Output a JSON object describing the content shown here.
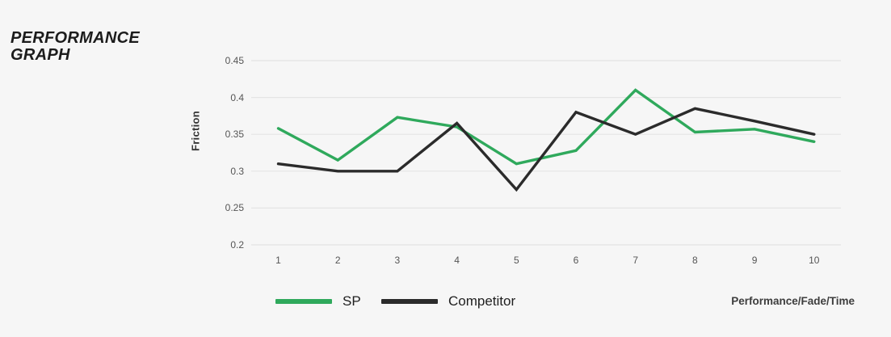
{
  "header": {
    "title": "PERFORMANCE GRAPH"
  },
  "axes": {
    "y_label": "Friction",
    "x_label": "Performance/Fade/Time"
  },
  "legend": {
    "items": [
      {
        "label": "SP",
        "color": "#2fa95c"
      },
      {
        "label": "Competitor",
        "color": "#2b2b2b"
      }
    ]
  },
  "chart_data": {
    "type": "line",
    "title": "PERFORMANCE GRAPH",
    "x": [
      1,
      2,
      3,
      4,
      5,
      6,
      7,
      8,
      9,
      10
    ],
    "series": [
      {
        "name": "SP",
        "color": "#2fa95c",
        "values": [
          0.358,
          0.315,
          0.373,
          0.36,
          0.31,
          0.328,
          0.41,
          0.353,
          0.357,
          0.34
        ]
      },
      {
        "name": "Competitor",
        "color": "#2b2b2b",
        "values": [
          0.31,
          0.3,
          0.3,
          0.365,
          0.275,
          0.38,
          0.35,
          0.385,
          0.368,
          0.35
        ]
      }
    ],
    "xlabel": "Performance/Fade/Time",
    "ylabel": "Friction",
    "ylim": [
      0.2,
      0.45
    ],
    "yticks": [
      0.45,
      0.4,
      0.35,
      0.3,
      0.25,
      0.2
    ],
    "ytick_labels": [
      "0.45",
      "0.4",
      "0.35",
      "0.3",
      "0.25",
      "0.2"
    ],
    "grid": true,
    "grid_color": "#e4e4e4",
    "background": "#f6f6f6",
    "legend_position": "bottom"
  }
}
